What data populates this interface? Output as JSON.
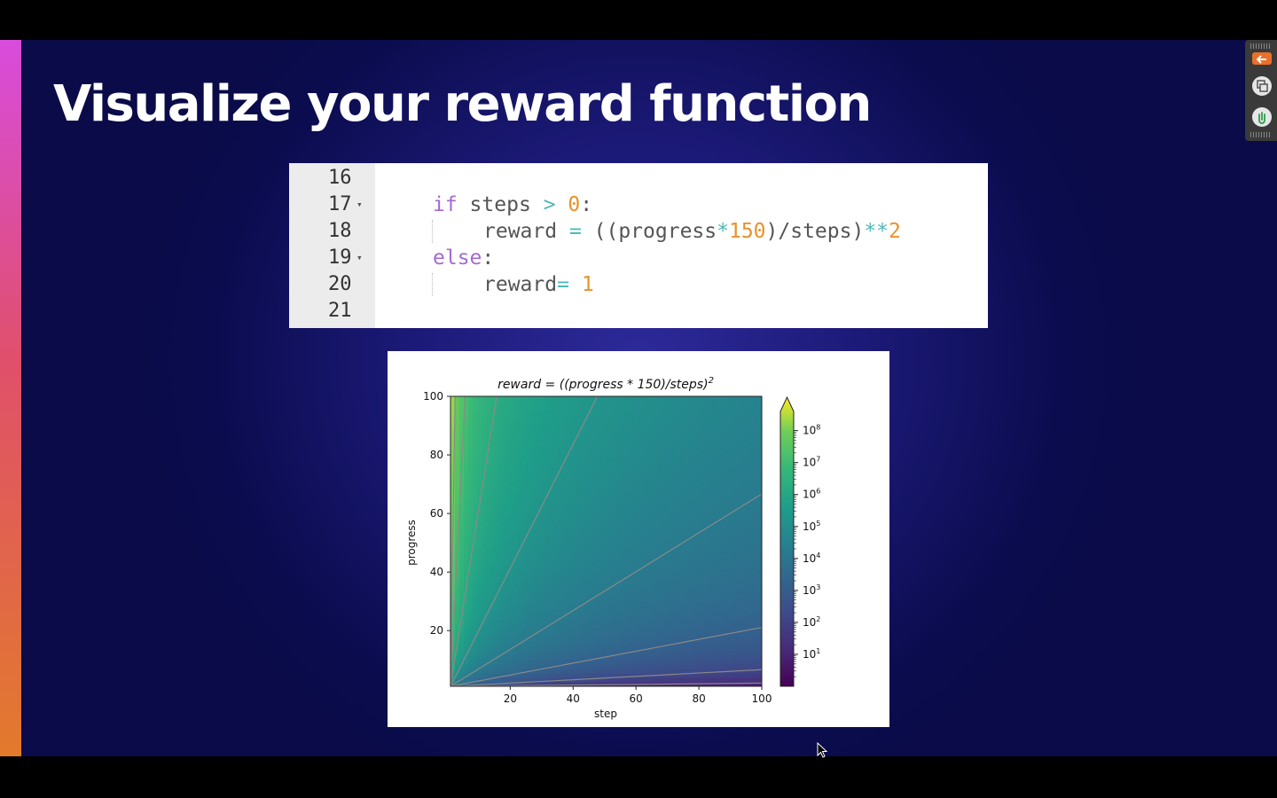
{
  "slide": {
    "title": "Visualize your reward function"
  },
  "code": {
    "line_numbers": [
      "16",
      "17",
      "18",
      "19",
      "20",
      "21"
    ],
    "folded_lines": [
      false,
      true,
      false,
      true,
      false,
      false
    ],
    "lines": {
      "l17": {
        "kw": "if",
        "mid": " steps ",
        "op": ">",
        "space": " ",
        "num": "0",
        "end": ":"
      },
      "l18": {
        "a": "reward ",
        "eq": "=",
        "b": " ((progress",
        "star": "*",
        "n150": "150",
        "c": ")/steps)",
        "pow": "**",
        "n2": "2"
      },
      "l19": {
        "kw": "else",
        "end": ":"
      },
      "l20": {
        "a": "reward",
        "eq": "=",
        "space": " ",
        "num": "1"
      }
    }
  },
  "chart_data": {
    "type": "heatmap",
    "title_prefix": "reward = ((progress * 150)/steps)",
    "title_exponent": "2",
    "xlabel": "step",
    "ylabel": "progress",
    "xlim": [
      1,
      100
    ],
    "ylim": [
      1,
      100
    ],
    "x_ticks": [
      "20",
      "40",
      "60",
      "80",
      "100"
    ],
    "y_ticks": [
      "20",
      "40",
      "60",
      "80",
      "100"
    ],
    "colorbar": {
      "scale": "log",
      "colormap": "viridis",
      "extend": "max",
      "tick_base": "10",
      "tick_exponents": [
        "1",
        "2",
        "3",
        "4",
        "5",
        "6",
        "7",
        "8"
      ]
    },
    "contour_color": "#8a8a8a"
  },
  "toolbar": {
    "icons": [
      "back-arrow-icon",
      "copy-icon",
      "hand-icon"
    ],
    "accent": "#e8702a"
  },
  "colors": {
    "accent_gradient": [
      "#d84cdc",
      "#e0506a",
      "#e27a2c"
    ],
    "slide_background": "#0b0c4f"
  }
}
